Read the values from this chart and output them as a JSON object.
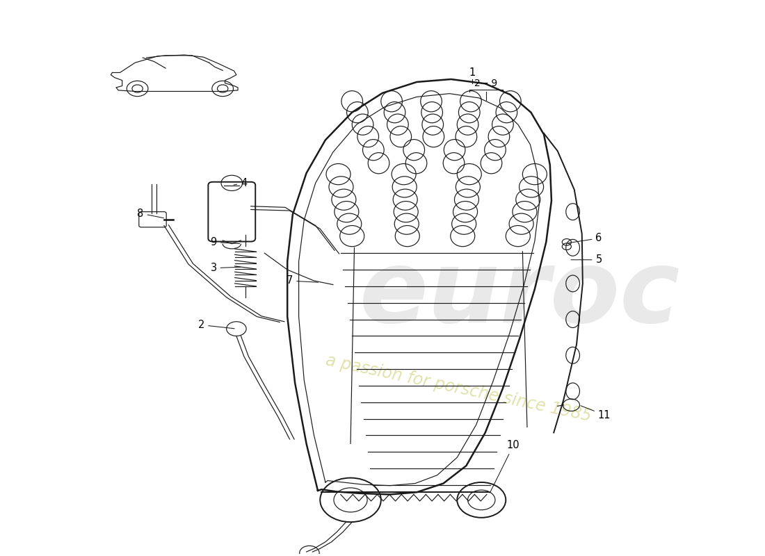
{
  "bg": "#ffffff",
  "lc": "#1a1a1a",
  "wm1_color": "#c8c8c8",
  "wm2_color": "#d8d890",
  "label_fs": 10.5,
  "label_color": "#000000",
  "lw_main": 1.4,
  "lw_thin": 0.85
}
